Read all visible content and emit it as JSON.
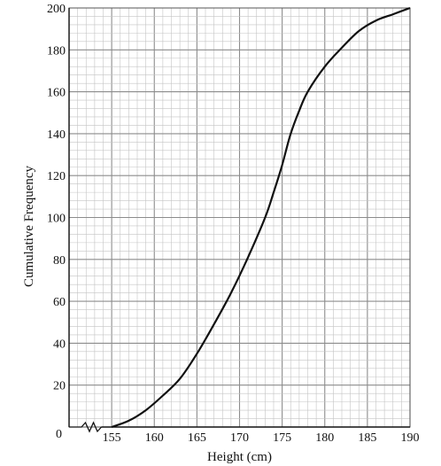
{
  "chart_data": {
    "type": "line",
    "title": "",
    "xlabel": "Height (cm)",
    "ylabel": "Cumulative Frequency",
    "origin_label": "0",
    "x_axis_break": true,
    "xlim": [
      150,
      190
    ],
    "ylim": [
      0,
      200
    ],
    "x_ticks": [
      155,
      160,
      165,
      170,
      175,
      180,
      185,
      190
    ],
    "y_ticks": [
      20,
      40,
      60,
      80,
      100,
      120,
      140,
      160,
      180,
      200
    ],
    "grid": true,
    "series": [
      {
        "x": [
          155,
          157,
          159,
          161,
          163,
          165,
          167,
          169,
          171,
          173,
          174,
          175,
          176,
          177,
          178,
          180,
          182,
          184,
          186,
          188,
          190
        ],
        "y": [
          0,
          3,
          8,
          15,
          23,
          35,
          49,
          64,
          81,
          100,
          112,
          125,
          140,
          151,
          160,
          172,
          181,
          189,
          194,
          197,
          200
        ]
      }
    ],
    "colors": {
      "line": "#111111",
      "grid_major": "#8c8c8c",
      "grid_minor": "#c4c4c4"
    }
  }
}
